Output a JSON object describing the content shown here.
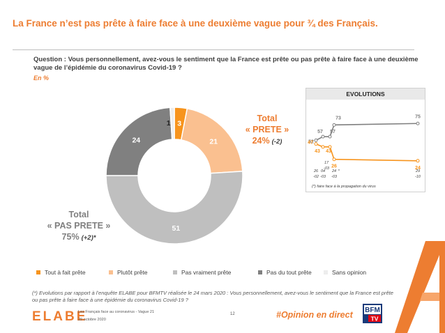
{
  "title": "La France n’est pas prête à faire face à une deuxième vague pour ¾ des Français.",
  "question": "Question : Vous personnellement, avez-vous le sentiment que la France est prête ou pas prête à faire face à une deuxième vague de l’épidémie du coronavirus Covid-19 ?",
  "unit": "En %",
  "colors": {
    "tout_a_fait": "#F7941D",
    "plutot": "#FAC090",
    "pas_vraiment": "#BFBFBF",
    "pas_du_tout": "#808080",
    "sans_opinion": "#EDEDED",
    "accent": "#ED7D31",
    "evo_prete": "#F7941D",
    "evo_pas_prete": "#7F7F7F"
  },
  "totals": {
    "prete": {
      "label_line1": "Total",
      "label_line2": "« PRETE »",
      "value": "24%",
      "change": "(-2)"
    },
    "pas_prete": {
      "label_line1": "Total",
      "label_line2": "« PAS PRETE »",
      "value": "75%",
      "change": "(+2)*"
    }
  },
  "evolutions": {
    "header": "EVOLUTIONS",
    "note": "(*) faire face à la propagation du virus"
  },
  "legend": [
    {
      "label": "Tout à fait prête",
      "color_key": "tout_a_fait"
    },
    {
      "label": "Plutôt prête",
      "color_key": "plutot"
    },
    {
      "label": "Pas vraiment prête",
      "color_key": "pas_vraiment"
    },
    {
      "label": "Pas du tout prête",
      "color_key": "pas_du_tout"
    },
    {
      "label": "Sans opinion",
      "color_key": "sans_opinion"
    }
  ],
  "footnote": "(*) Evolutions par rapport à l’enquête ELABE pour BFMTV réalisée le 24 mars 2020 : Vous personnellement, avez-vous le sentiment que la France est prête ou pas prête à faire face à une épidémie du coronavirus Covid-19 ?",
  "footer": {
    "logo": "ELABE",
    "line1": "Les Français face au coronavirus - Vague 21",
    "line2": "29 octobre 2020",
    "page": "12",
    "hashtag": "#Opinion en direct",
    "bfm_top": "BFM",
    "bfm_bottom": "TV"
  },
  "chart_data": [
    {
      "type": "pie",
      "subtype": "donut",
      "categories": [
        "Tout à fait prête",
        "Plutôt prête",
        "Pas vraiment prête",
        "Pas du tout prête",
        "Sans opinion"
      ],
      "values": [
        3,
        21,
        51,
        24,
        1
      ],
      "labels": [
        "3",
        "21",
        "51",
        "24",
        "1"
      ]
    },
    {
      "type": "line",
      "title": "EVOLUTIONS",
      "x": [
        "26-02",
        "04-03",
        "17-03",
        "24-03 *",
        "29-10"
      ],
      "x_ticks": [
        {
          "line1": "26",
          "line2": "-02"
        },
        {
          "line1": "04",
          "line2": "-03"
        },
        {
          "line1": "17",
          "line2": "-03"
        },
        {
          "line1": "24",
          "line2": "-03",
          "mark": "*"
        },
        {
          "line1": "29",
          "line2": "-10"
        }
      ],
      "series": [
        {
          "key": "pas_prete",
          "values": [
            52,
            57,
            57,
            73,
            75
          ]
        },
        {
          "key": "prete",
          "values": [
            47,
            43,
            43,
            26,
            24
          ]
        }
      ],
      "ylim": [
        0,
        100
      ],
      "grid": false
    }
  ]
}
